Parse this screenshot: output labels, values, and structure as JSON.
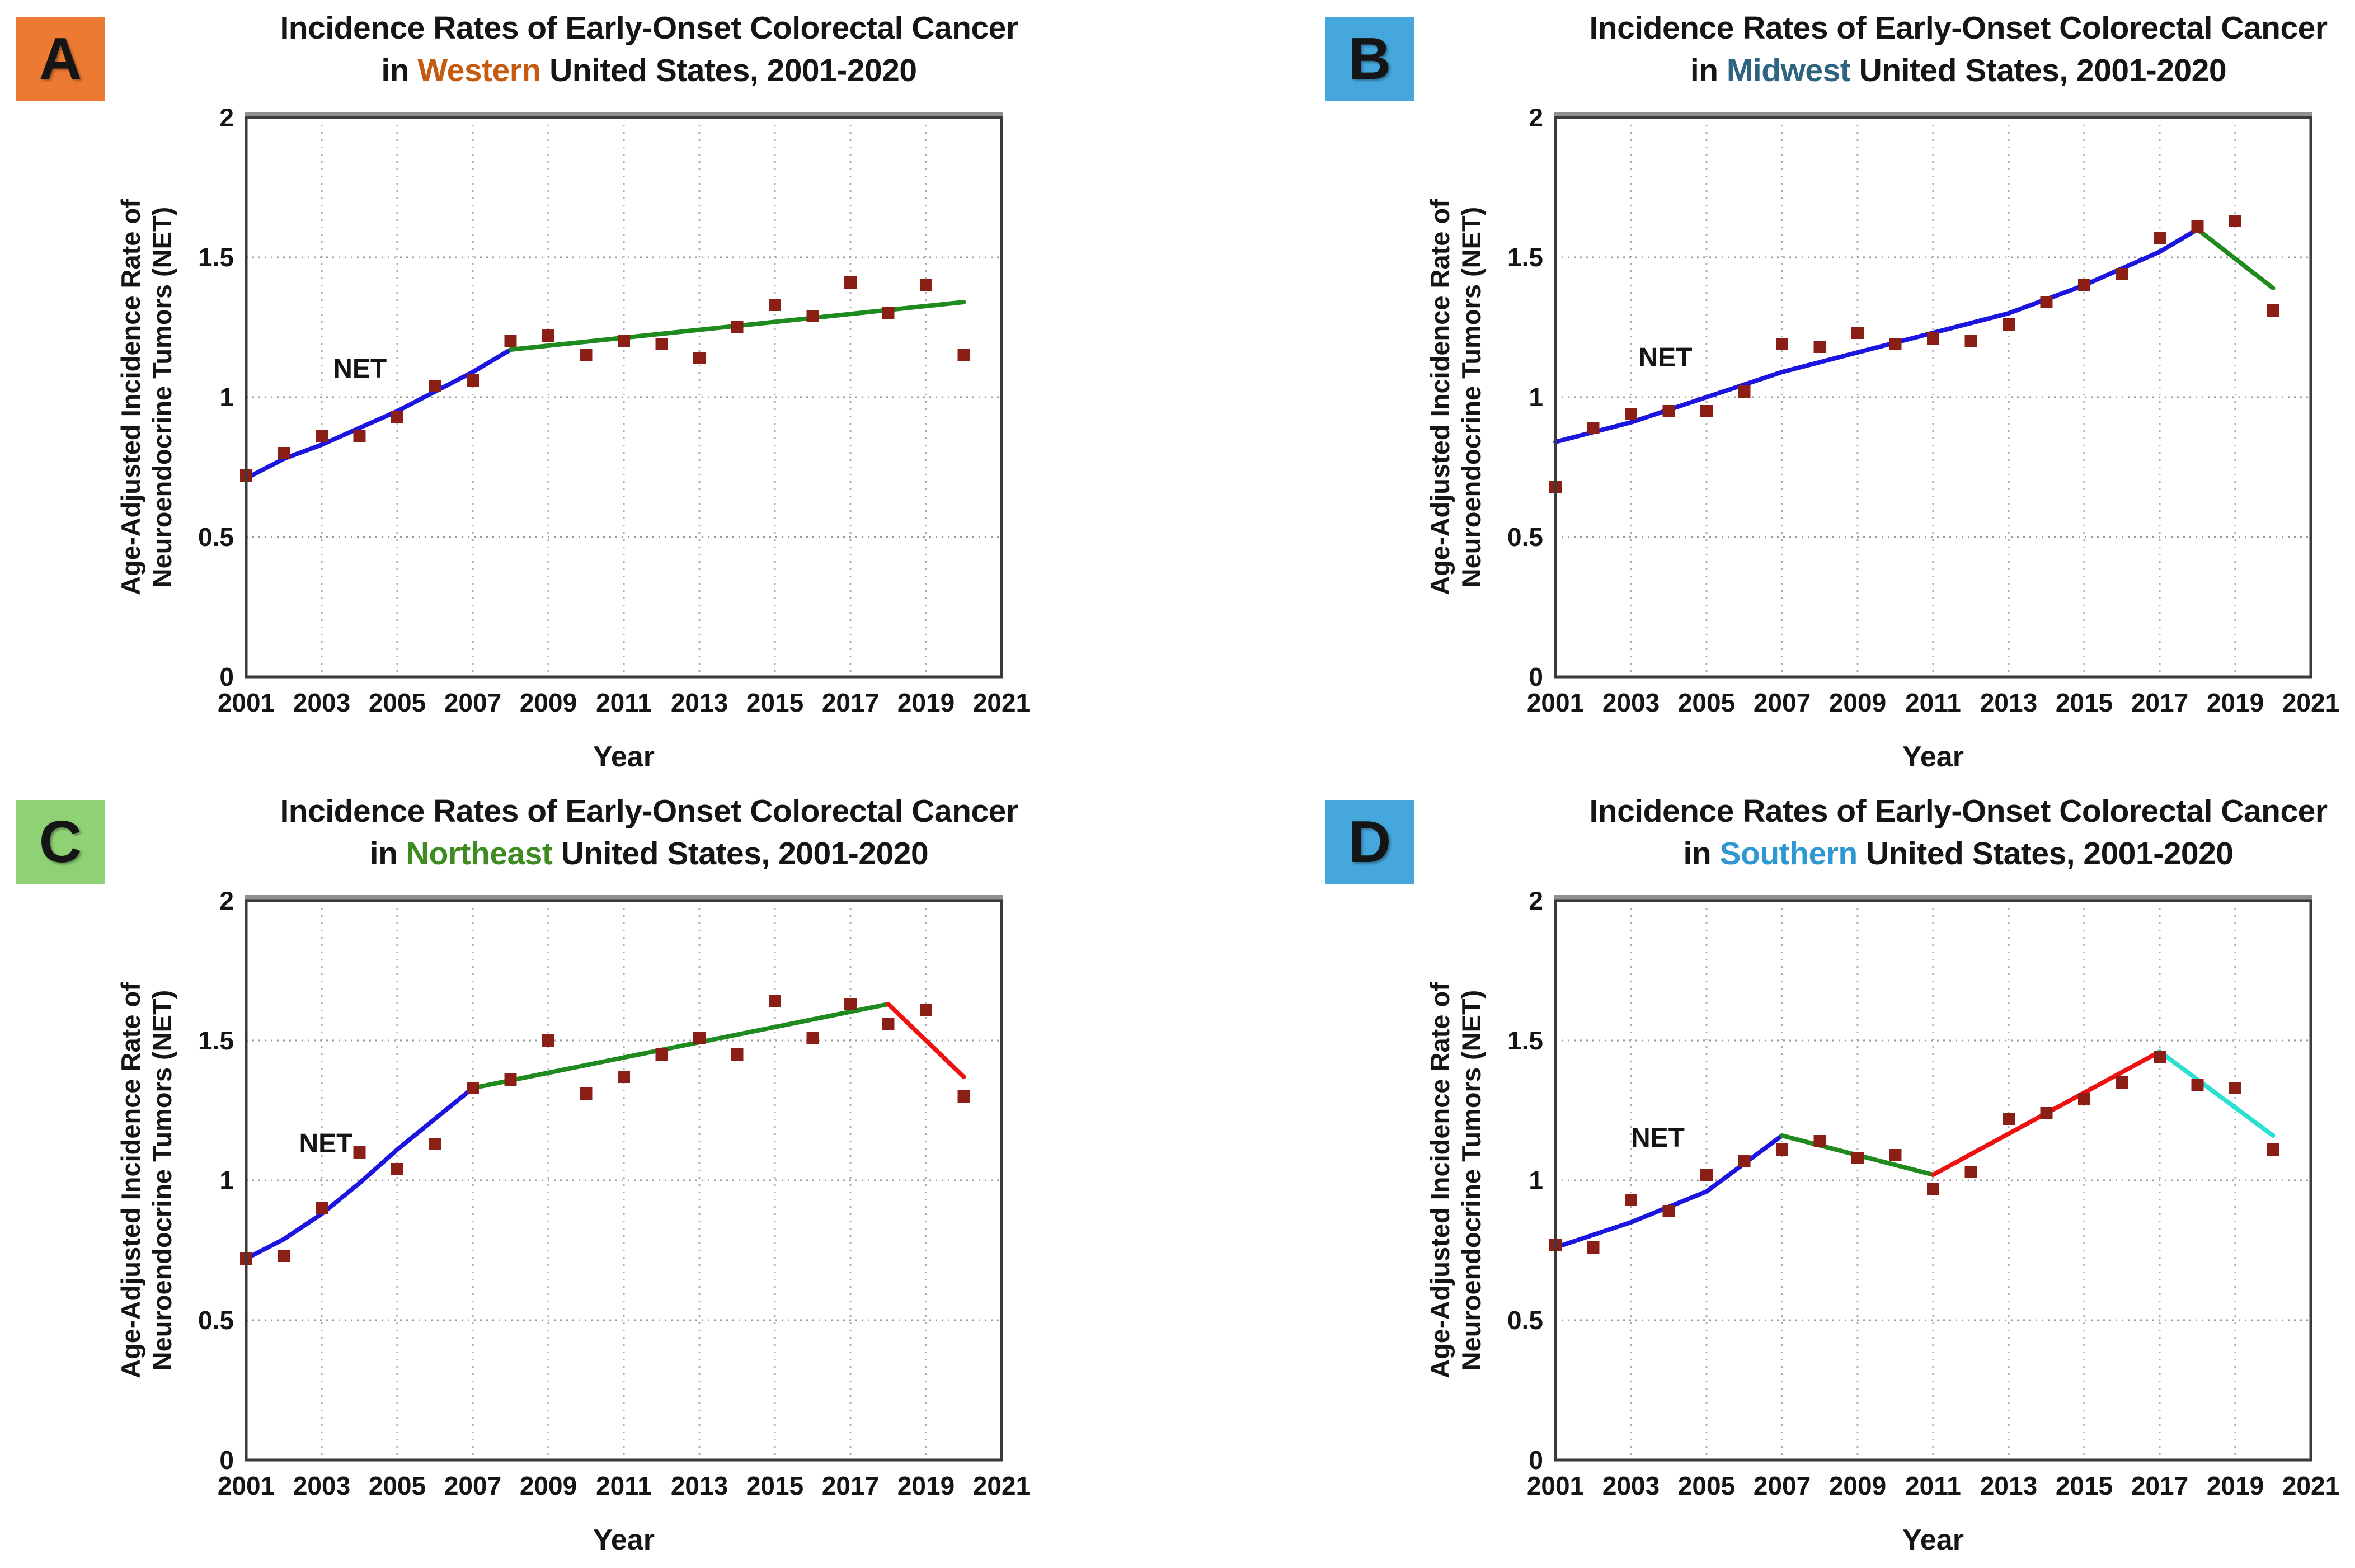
{
  "figure": {
    "y_axis_title_line1": "Age-Adjusted Incidence Rate of",
    "y_axis_title_line2": "Neuroendocrine Tumors (NET)",
    "x_axis_title": "Year",
    "series_label": "NET",
    "marker_color": "#8B1F15",
    "border_color": "#3a3a3a",
    "top_accent_color": "#8f8f8f",
    "h_grid_color": "#9a9a9a",
    "v_grid_color": "#ababab",
    "text_color": "#151515",
    "y_tick_labels": [
      "0",
      "0.5",
      "1",
      "1.5",
      "2"
    ],
    "x_tick_labels": [
      "2001",
      "2003",
      "2005",
      "2007",
      "2009",
      "2011",
      "2013",
      "2015",
      "2017",
      "2019",
      "2021"
    ],
    "xlim": [
      2001,
      2021
    ],
    "ylim": [
      0,
      2
    ]
  },
  "chart_data": [
    {
      "type": "scatter",
      "badge": "A",
      "badge_color": "#EC7A33",
      "title_line1": "Incidence Rates of Early-Onset Colorectal Cancer",
      "in_word": "in ",
      "region": "Western",
      "region_color": "#C55A11",
      "title_suffix": " United States, 2001-2020",
      "xlabel": "Year",
      "ylabel": "Age-Adjusted Incidence Rate of Neuroendocrine Tumors (NET)",
      "xlim": [
        2001,
        2021
      ],
      "ylim": [
        0,
        2
      ],
      "x": [
        2001,
        2002,
        2003,
        2004,
        2005,
        2006,
        2007,
        2008,
        2009,
        2010,
        2011,
        2012,
        2013,
        2014,
        2015,
        2016,
        2017,
        2018,
        2019,
        2020
      ],
      "values": [
        0.72,
        0.8,
        0.86,
        0.86,
        0.93,
        1.04,
        1.06,
        1.2,
        1.22,
        1.15,
        1.2,
        1.19,
        1.14,
        1.25,
        1.33,
        1.29,
        1.41,
        1.3,
        1.4,
        1.15
      ],
      "net_label_x": 2003.3,
      "net_label_y": 1.07,
      "trends": [
        {
          "name": "trend-rising-2001-2008",
          "color": "#1C15E0",
          "points": [
            [
              2001,
              0.71
            ],
            [
              2002,
              0.78
            ],
            [
              2003,
              0.83
            ],
            [
              2004,
              0.89
            ],
            [
              2005,
              0.95
            ],
            [
              2006,
              1.02
            ],
            [
              2007,
              1.09
            ],
            [
              2008,
              1.17
            ]
          ]
        },
        {
          "name": "trend-2008-2020",
          "color": "#1F8B1F",
          "points": [
            [
              2008,
              1.17
            ],
            [
              2020,
              1.34
            ]
          ]
        }
      ]
    },
    {
      "type": "scatter",
      "badge": "B",
      "badge_color": "#45A7DC",
      "title_line1": "Incidence Rates of Early-Onset Colorectal Cancer",
      "in_word": "in ",
      "region": "Midwest",
      "region_color": "#2F6480",
      "title_suffix": " United States, 2001-2020",
      "xlabel": "Year",
      "ylabel": "Age-Adjusted Incidence Rate of Neuroendocrine Tumors (NET)",
      "xlim": [
        2001,
        2021
      ],
      "ylim": [
        0,
        2
      ],
      "x": [
        2001,
        2002,
        2003,
        2004,
        2005,
        2006,
        2007,
        2008,
        2009,
        2010,
        2011,
        2012,
        2013,
        2014,
        2015,
        2016,
        2017,
        2018,
        2019,
        2020
      ],
      "values": [
        0.68,
        0.89,
        0.94,
        0.95,
        0.95,
        1.02,
        1.19,
        1.18,
        1.23,
        1.19,
        1.21,
        1.2,
        1.26,
        1.34,
        1.4,
        1.44,
        1.57,
        1.61,
        1.63,
        1.31
      ],
      "net_label_x": 2003.2,
      "net_label_y": 1.11,
      "trends": [
        {
          "name": "trend-rising-2001-2018",
          "color": "#1C15E0",
          "points": [
            [
              2001,
              0.84
            ],
            [
              2003,
              0.91
            ],
            [
              2005,
              1.0
            ],
            [
              2007,
              1.09
            ],
            [
              2009,
              1.16
            ],
            [
              2011,
              1.23
            ],
            [
              2013,
              1.3
            ],
            [
              2015,
              1.4
            ],
            [
              2017,
              1.52
            ],
            [
              2018,
              1.6
            ]
          ]
        },
        {
          "name": "trend-falling-2018-2020",
          "color": "#1F8B1F",
          "points": [
            [
              2018,
              1.6
            ],
            [
              2020,
              1.39
            ]
          ]
        }
      ]
    },
    {
      "type": "scatter",
      "badge": "C",
      "badge_color": "#8FD276",
      "title_line1": "Incidence Rates of Early-Onset Colorectal Cancer",
      "in_word": "in ",
      "region": "Northeast",
      "region_color": "#3E8B22",
      "title_suffix": " United States, 2001-2020",
      "xlabel": "Year",
      "ylabel": "Age-Adjusted Incidence Rate of Neuroendocrine Tumors (NET)",
      "xlim": [
        2001,
        2021
      ],
      "ylim": [
        0,
        2
      ],
      "x": [
        2001,
        2002,
        2003,
        2004,
        2005,
        2006,
        2007,
        2008,
        2009,
        2010,
        2011,
        2012,
        2013,
        2014,
        2015,
        2016,
        2017,
        2018,
        2019,
        2020
      ],
      "values": [
        0.72,
        0.73,
        0.9,
        1.1,
        1.04,
        1.13,
        1.33,
        1.36,
        1.5,
        1.31,
        1.37,
        1.45,
        1.51,
        1.45,
        1.64,
        1.51,
        1.63,
        1.56,
        1.61,
        1.3
      ],
      "net_label_x": 2002.4,
      "net_label_y": 1.1,
      "trends": [
        {
          "name": "trend-rising-2001-2007",
          "color": "#1C15E0",
          "points": [
            [
              2001,
              0.72
            ],
            [
              2002,
              0.79
            ],
            [
              2003,
              0.88
            ],
            [
              2004,
              0.99
            ],
            [
              2005,
              1.11
            ],
            [
              2006,
              1.22
            ],
            [
              2007,
              1.33
            ]
          ]
        },
        {
          "name": "trend-2007-2018",
          "color": "#1F8B1F",
          "points": [
            [
              2007,
              1.33
            ],
            [
              2018,
              1.63
            ]
          ]
        },
        {
          "name": "trend-falling-2018-2020",
          "color": "#EE1111",
          "points": [
            [
              2018,
              1.63
            ],
            [
              2020,
              1.37
            ]
          ]
        }
      ]
    },
    {
      "type": "scatter",
      "badge": "D",
      "badge_color": "#45A7DC",
      "title_line1": "Incidence Rates of Early-Onset Colorectal Cancer",
      "in_word": "in ",
      "region": "Southern",
      "region_color": "#2E97D4",
      "title_suffix": " United States, 2001-2020",
      "xlabel": "Year",
      "ylabel": "Age-Adjusted Incidence Rate of Neuroendocrine Tumors (NET)",
      "xlim": [
        2001,
        2021
      ],
      "ylim": [
        0,
        2
      ],
      "x": [
        2001,
        2002,
        2003,
        2004,
        2005,
        2006,
        2007,
        2008,
        2009,
        2010,
        2011,
        2012,
        2013,
        2014,
        2015,
        2016,
        2017,
        2018,
        2019,
        2020
      ],
      "values": [
        0.77,
        0.76,
        0.93,
        0.89,
        1.02,
        1.07,
        1.11,
        1.14,
        1.08,
        1.09,
        0.97,
        1.03,
        1.22,
        1.24,
        1.29,
        1.35,
        1.44,
        1.34,
        1.33,
        1.11
      ],
      "net_label_x": 2003.0,
      "net_label_y": 1.12,
      "trends": [
        {
          "name": "trend-rising-2001-2007",
          "color": "#1C15E0",
          "points": [
            [
              2001,
              0.76
            ],
            [
              2003,
              0.85
            ],
            [
              2005,
              0.96
            ],
            [
              2007,
              1.16
            ]
          ]
        },
        {
          "name": "trend-falling-2007-2011",
          "color": "#1F8B1F",
          "points": [
            [
              2007,
              1.16
            ],
            [
              2011,
              1.02
            ]
          ]
        },
        {
          "name": "trend-rising-2011-2017",
          "color": "#EE1111",
          "points": [
            [
              2011,
              1.02
            ],
            [
              2017,
              1.46
            ]
          ]
        },
        {
          "name": "trend-falling-2017-2020",
          "color": "#2BE0D0",
          "points": [
            [
              2017,
              1.46
            ],
            [
              2020,
              1.16
            ]
          ]
        }
      ]
    }
  ]
}
